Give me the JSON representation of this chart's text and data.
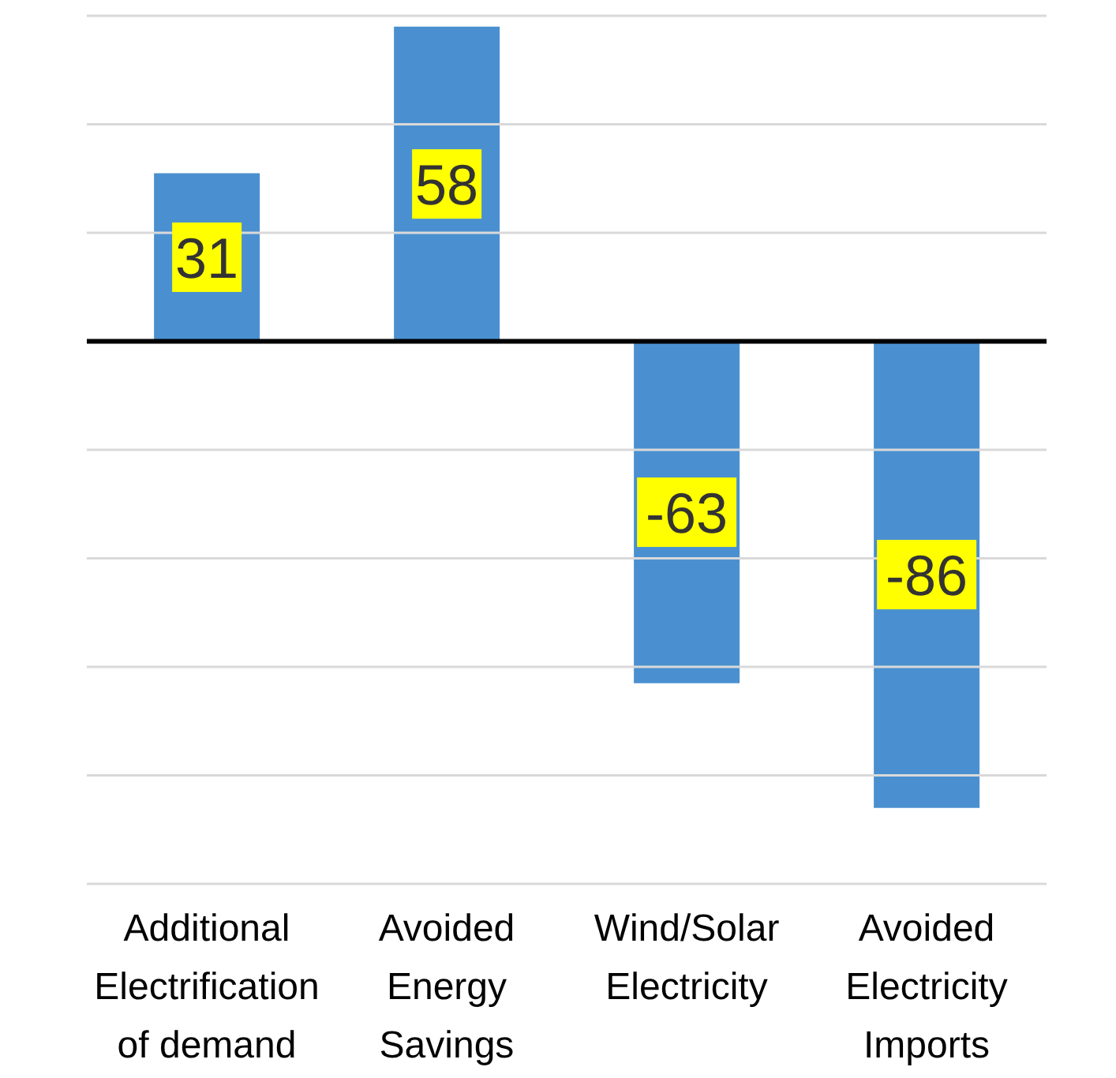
{
  "chart_data": {
    "type": "bar",
    "categories": [
      "Additional Electrification of demand",
      "Avoided Energy Savings",
      "Wind/Solar Electricity",
      "Avoided Electricity Imports"
    ],
    "values": [
      31,
      58,
      -63,
      -86
    ],
    "color": "#4a90d0",
    "ylim": [
      -100,
      60
    ],
    "yticks": [
      {
        "value": -100,
        "label": null
      },
      {
        "value": -80,
        "label": null
      },
      {
        "value": -60,
        "label": null
      },
      {
        "value": -40,
        "label": null
      },
      {
        "value": -20,
        "label": null
      },
      {
        "value": 0,
        "label": null
      },
      {
        "value": 20,
        "label": null
      },
      {
        "value": 40,
        "label": null
      },
      {
        "value": 60,
        "label": null
      }
    ],
    "tick_labels": "x",
    "grid": "y",
    "data_labels": true,
    "ref_lines": [
      {
        "axis": "y",
        "value": 0,
        "color": "#000000"
      }
    ]
  }
}
